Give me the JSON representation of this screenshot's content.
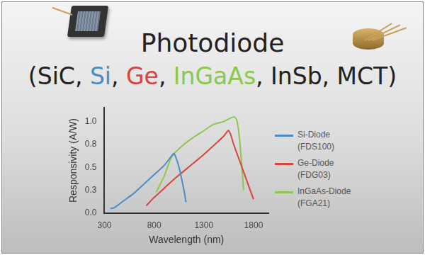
{
  "chart_data": {
    "type": "line",
    "title": "Photodiode",
    "subtitle": "(SiC, Si, Ge, InGaAs, InSb, MCT)",
    "x_label": "Wavelength (nm)",
    "y_label": "Responsivity (A/W)",
    "xlim": [
      300,
      1950
    ],
    "xticks": [
      300,
      800,
      1300,
      1800
    ],
    "ylim": [
      0,
      1.15
    ],
    "yticks": [
      {
        "value": 0,
        "label": "0.0"
      },
      {
        "value": 0.25,
        "label": "0.3"
      },
      {
        "value": 0.5,
        "label": "0.5"
      },
      {
        "value": 0.75,
        "label": "0.8"
      },
      {
        "value": 1.0,
        "label": "1.0"
      }
    ],
    "grid": false,
    "legend": "right",
    "series": [
      {
        "name": "Si-Diode (FDS100)",
        "color": "#4a8cc8",
        "x": [
          360,
          400,
          500,
          600,
          700,
          800,
          900,
          980,
          1000,
          1050,
          1100,
          1120
        ],
        "values": [
          0.05,
          0.06,
          0.14,
          0.22,
          0.32,
          0.42,
          0.52,
          0.63,
          0.65,
          0.5,
          0.25,
          0.12
        ]
      },
      {
        "name": "Ge-Diode (FDG03)",
        "color": "#d9453d",
        "x": [
          720,
          800,
          900,
          1000,
          1100,
          1200,
          1300,
          1400,
          1500,
          1550,
          1600,
          1700,
          1800
        ],
        "values": [
          0.08,
          0.17,
          0.27,
          0.37,
          0.46,
          0.55,
          0.64,
          0.74,
          0.84,
          0.9,
          0.75,
          0.45,
          0.15
        ]
      },
      {
        "name": "InGaAs-Diode (FGA21)",
        "color": "#8cc84b",
        "x": [
          820,
          900,
          980,
          1100,
          1200,
          1300,
          1400,
          1500,
          1600,
          1630,
          1660,
          1700
        ],
        "values": [
          0.23,
          0.4,
          0.62,
          0.75,
          0.83,
          0.9,
          0.97,
          1.0,
          1.05,
          1.02,
          0.8,
          0.25
        ]
      }
    ]
  }
}
